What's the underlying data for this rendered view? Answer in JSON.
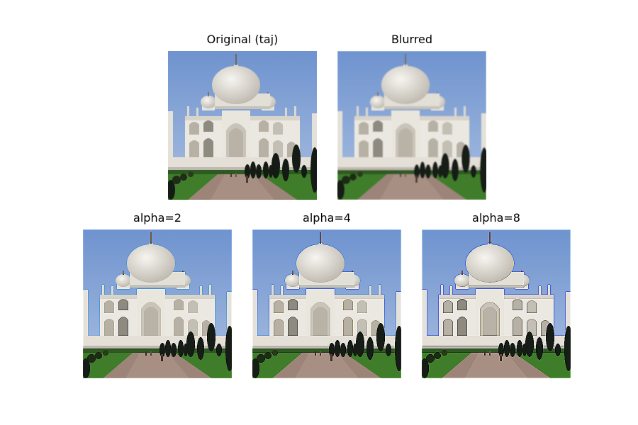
{
  "figure": {
    "panels": [
      {
        "title": "Original (taj)",
        "filter": "none"
      },
      {
        "title": "Blurred",
        "filter": "blur"
      },
      {
        "title": "alpha=2",
        "filter": "sharp1"
      },
      {
        "title": "alpha=4",
        "filter": "sharp2"
      },
      {
        "title": "alpha=8",
        "filter": "sharp3"
      }
    ]
  },
  "colors": {
    "sky_top": "#6f93cf",
    "sky_bottom": "#a9bfe0",
    "marble": "#ece9e2",
    "marble_shadow": "#c9c5bc",
    "tree": "#141a14",
    "grass": "#3f7d2a",
    "path": "#9c8478"
  }
}
